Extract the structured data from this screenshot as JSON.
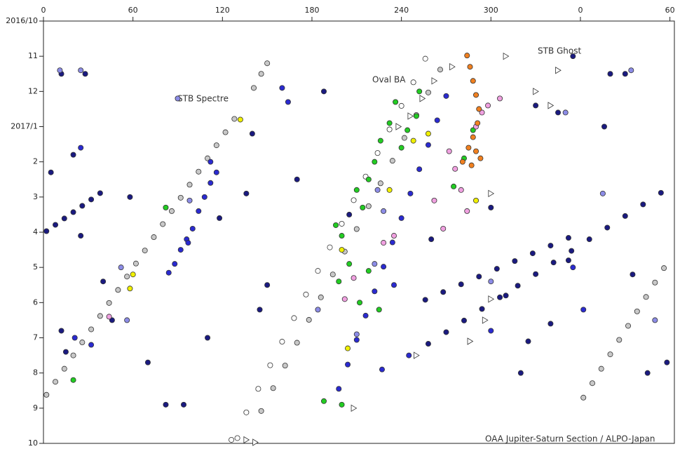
{
  "chart_data": {
    "type": "scatter",
    "annotations": [
      "STB Spectre",
      "Oval BA",
      "STB Ghost",
      "OAA Jupiter-Saturn Section / ALPO-Japan"
    ],
    "xlim": [
      0,
      423
    ],
    "xticks": [
      0,
      60,
      120,
      180,
      240,
      300,
      {
        "value": 360,
        "label": "0"
      },
      {
        "value": 420,
        "label": "60"
      }
    ],
    "ylim": [
      0,
      12
    ],
    "yticks": [
      {
        "value": 0,
        "label": "2016/10"
      },
      {
        "value": 1,
        "label": "11"
      },
      {
        "value": 2,
        "label": "12"
      },
      {
        "value": 3,
        "label": "2017/1"
      },
      {
        "value": 4,
        "label": "2"
      },
      {
        "value": 5,
        "label": "3"
      },
      {
        "value": 6,
        "label": "4"
      },
      {
        "value": 7,
        "label": "5"
      },
      {
        "value": 8,
        "label": "6"
      },
      {
        "value": 9,
        "label": "7"
      },
      {
        "value": 10,
        "label": "8"
      },
      {
        "value": 11,
        "label": "9"
      },
      {
        "value": 12,
        "label": "10"
      }
    ],
    "y_inverted": true,
    "series": [
      {
        "color": "#c8c8c8",
        "marker": "circle",
        "x": [
          2,
          8,
          14,
          20,
          26,
          32,
          38,
          44,
          50,
          56,
          62,
          68,
          74,
          80,
          86,
          92,
          98,
          104,
          110,
          116,
          122,
          128,
          141,
          146,
          150,
          362,
          368,
          374,
          380,
          386,
          392,
          398,
          404,
          410,
          416,
          146,
          154,
          162,
          170,
          178,
          186,
          194,
          202,
          210,
          218,
          226,
          234,
          242,
          250,
          258,
          266
        ],
        "y": [
          10.62,
          10.25,
          9.88,
          9.5,
          9.13,
          8.76,
          8.38,
          8.01,
          7.64,
          7.26,
          6.89,
          6.52,
          6.14,
          5.77,
          5.4,
          5.02,
          4.65,
          4.28,
          3.9,
          3.53,
          3.16,
          2.78,
          1.9,
          1.5,
          1.2,
          10.7,
          10.29,
          9.88,
          9.47,
          9.06,
          8.66,
          8.25,
          7.84,
          7.43,
          7.02,
          11.08,
          10.43,
          9.79,
          9.14,
          8.49,
          7.85,
          7.2,
          6.55,
          5.91,
          5.26,
          4.61,
          3.97,
          3.32,
          2.67,
          2.03,
          1.38
        ]
      },
      {
        "color": "#ffffff",
        "marker": "circle",
        "x": [
          126,
          130,
          136,
          144,
          152,
          160,
          168,
          176,
          184,
          192,
          200,
          208,
          216,
          224,
          232,
          240,
          248,
          256
        ],
        "y": [
          11.9,
          11.85,
          11.12,
          10.45,
          9.78,
          9.11,
          8.44,
          7.77,
          7.1,
          6.43,
          5.76,
          5.09,
          4.42,
          3.75,
          3.08,
          2.41,
          1.74,
          1.07
        ]
      },
      {
        "color": "#1a1a80",
        "marker": "circle",
        "x": [
          258,
          270,
          282,
          294,
          306,
          318,
          330,
          342,
          354,
          366,
          378,
          390,
          402,
          414,
          2,
          8,
          14,
          20,
          26,
          32,
          38,
          256,
          268,
          280,
          292,
          304,
          316,
          328,
          340,
          352,
          5,
          12,
          15,
          25,
          40,
          46,
          58,
          70,
          82,
          94,
          110,
          118,
          136,
          140,
          150,
          145,
          170,
          188,
          205,
          260,
          300,
          320,
          340,
          352,
          376,
          395,
          405,
          418,
          330,
          345,
          355,
          380,
          390,
          12,
          28,
          20,
          310,
          325
        ],
        "y": [
          9.17,
          8.84,
          8.51,
          8.18,
          7.85,
          7.52,
          7.19,
          6.86,
          6.53,
          6.2,
          5.87,
          5.54,
          5.21,
          4.88,
          5.97,
          5.79,
          5.61,
          5.43,
          5.25,
          5.07,
          4.89,
          7.92,
          7.7,
          7.48,
          7.26,
          7.04,
          6.82,
          6.6,
          6.38,
          6.16,
          4.3,
          8.8,
          9.4,
          6.1,
          7.4,
          8.5,
          5.0,
          9.7,
          10.9,
          10.9,
          9.0,
          5.6,
          4.9,
          3.2,
          7.5,
          8.2,
          4.5,
          2.0,
          5.5,
          6.2,
          5.3,
          10.0,
          8.6,
          6.8,
          3.0,
          7.2,
          10.0,
          9.7,
          2.4,
          2.6,
          1.0,
          1.5,
          1.5,
          1.5,
          1.5,
          3.8,
          7.8,
          9.1
        ]
      },
      {
        "color": "#2a2ad0",
        "marker": "circle",
        "x": [
          198,
          204,
          210,
          216,
          222,
          228,
          234,
          240,
          246,
          252,
          258,
          264,
          270,
          84,
          88,
          92,
          96,
          100,
          104,
          108,
          112,
          116,
          32,
          21,
          355,
          362,
          300,
          227,
          160,
          164,
          112,
          97,
          25,
          235,
          245
        ],
        "y": [
          10.45,
          9.76,
          9.06,
          8.37,
          7.68,
          6.98,
          6.29,
          5.6,
          4.9,
          4.21,
          3.52,
          2.82,
          2.13,
          7.15,
          6.9,
          6.5,
          6.2,
          5.9,
          5.4,
          5.0,
          4.6,
          4.3,
          9.2,
          9.0,
          7.0,
          8.2,
          8.8,
          9.9,
          1.9,
          2.3,
          4.0,
          6.3,
          3.6,
          7.5,
          9.5
        ]
      },
      {
        "color": "#8c8ce6",
        "marker": "circle",
        "x": [
          11,
          90,
          98,
          56,
          300,
          350,
          375,
          210,
          222,
          228,
          224,
          184,
          25,
          394,
          52,
          410
        ],
        "y": [
          1.4,
          2.2,
          5.1,
          8.5,
          7.4,
          2.6,
          4.9,
          8.9,
          6.9,
          5.4,
          4.8,
          8.2,
          1.4,
          1.4,
          7.0,
          8.5
        ]
      },
      {
        "color": "#22cc22",
        "marker": "circle",
        "x": [
          196,
          200,
          205,
          198,
          210,
          214,
          218,
          222,
          226,
          232,
          236,
          240,
          244,
          250,
          252,
          218,
          225,
          212,
          275,
          282,
          288,
          20,
          188,
          200,
          82
        ],
        "y": [
          5.8,
          6.1,
          6.9,
          7.4,
          4.8,
          5.3,
          4.5,
          4.0,
          3.4,
          2.9,
          2.3,
          3.6,
          3.1,
          2.7,
          2.0,
          7.1,
          8.2,
          8.0,
          4.7,
          3.9,
          3.1,
          10.2,
          10.8,
          10.9,
          5.3
        ]
      },
      {
        "color": "#f0a0e0",
        "marker": "circle",
        "x": [
          272,
          276,
          280,
          284,
          290,
          294,
          298,
          306,
          262,
          268,
          208,
          202,
          228,
          235,
          44
        ],
        "y": [
          3.7,
          4.2,
          4.8,
          5.4,
          3.0,
          2.6,
          2.4,
          2.2,
          5.1,
          5.9,
          7.3,
          7.9,
          6.3,
          6.1,
          8.4
        ]
      },
      {
        "color": "#f08020",
        "marker": "circle",
        "x": [
          284,
          286,
          288,
          290,
          292,
          291,
          288,
          285,
          290,
          293,
          281,
          287
        ],
        "y": [
          0.98,
          1.3,
          1.7,
          2.1,
          2.5,
          2.9,
          3.3,
          3.6,
          3.7,
          3.9,
          4.0,
          4.1
        ]
      },
      {
        "color": "#f0f000",
        "marker": "circle",
        "x": [
          60,
          132,
          200,
          232,
          248,
          258,
          290,
          204,
          58
        ],
        "y": [
          7.2,
          2.8,
          6.5,
          4.8,
          3.4,
          3.2,
          5.1,
          9.3,
          7.6
        ]
      },
      {
        "color": "#ffffff",
        "marker": "triangle",
        "x": [
          238,
          246,
          254,
          262,
          274,
          286,
          296,
          300,
          310,
          330,
          340,
          345,
          142,
          136,
          208,
          300,
          250
        ],
        "y": [
          3.0,
          2.7,
          2.2,
          1.7,
          1.3,
          9.1,
          8.5,
          7.9,
          1.0,
          2.0,
          2.4,
          1.4,
          11.97,
          11.9,
          11.0,
          4.9,
          9.5
        ]
      }
    ]
  }
}
